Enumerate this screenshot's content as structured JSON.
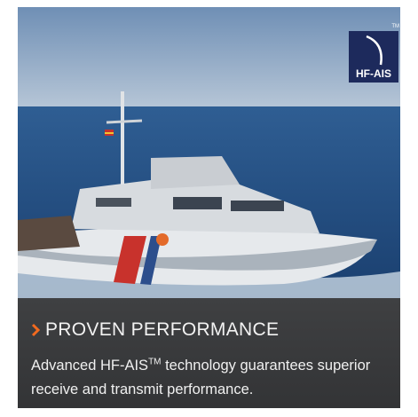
{
  "logo": {
    "label": "HF-AIS",
    "trademark": "TM"
  },
  "heading": "PROVEN PERFORMANCE",
  "body": {
    "before": "Advanced HF-AIS",
    "superscript": "TM",
    "after": " technology guarantees superior receive and transmit performance."
  }
}
